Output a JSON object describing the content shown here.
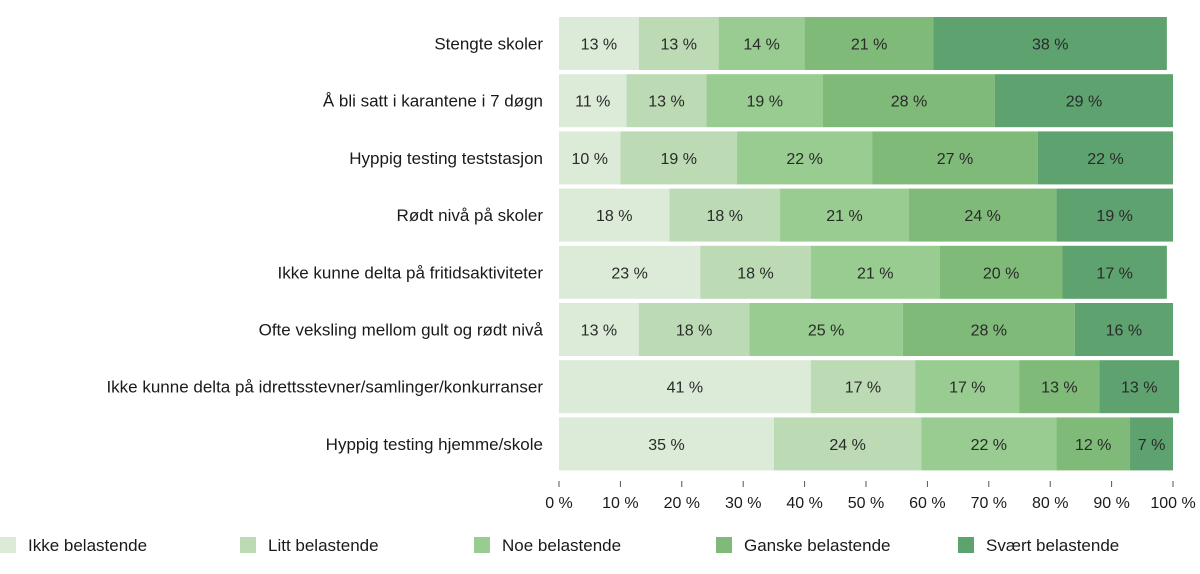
{
  "chart_data": {
    "type": "bar",
    "orientation": "horizontal",
    "stacked": true,
    "categories": [
      "Stengte skoler",
      "Å bli satt i karantene i 7 døgn",
      "Hyppig testing teststasjon",
      "Rødt nivå på skoler",
      "Ikke kunne delta på fritidsaktiviteter",
      "Ofte veksling mellom gult og rødt nivå",
      "Ikke kunne delta på idrettsstevner/samlinger/konkurranser",
      "Hyppig testing hjemme/skole"
    ],
    "series": [
      {
        "name": "Ikke belastende",
        "color": "#dcebd8",
        "values": [
          13,
          11,
          10,
          18,
          23,
          13,
          41,
          35
        ]
      },
      {
        "name": "Litt belastende",
        "color": "#bcdab4",
        "values": [
          13,
          13,
          19,
          18,
          18,
          18,
          17,
          24
        ]
      },
      {
        "name": "Noe belastende",
        "color": "#98cc90",
        "values": [
          14,
          19,
          22,
          21,
          21,
          25,
          17,
          22
        ]
      },
      {
        "name": "Ganske belastende",
        "color": "#7fba78",
        "values": [
          21,
          28,
          27,
          24,
          20,
          28,
          13,
          12
        ]
      },
      {
        "name": "Svært belastende",
        "color": "#5ea26f",
        "values": [
          38,
          29,
          22,
          19,
          17,
          16,
          13,
          7
        ]
      }
    ],
    "value_suffix": " %",
    "xlim": [
      0,
      100
    ],
    "xticks": [
      "0 %",
      "10 %",
      "20 %",
      "30 %",
      "40 %",
      "50 %",
      "60 %",
      "70 %",
      "80 %",
      "90 %",
      "100 %"
    ],
    "grid": false,
    "legend_position": "bottom"
  }
}
